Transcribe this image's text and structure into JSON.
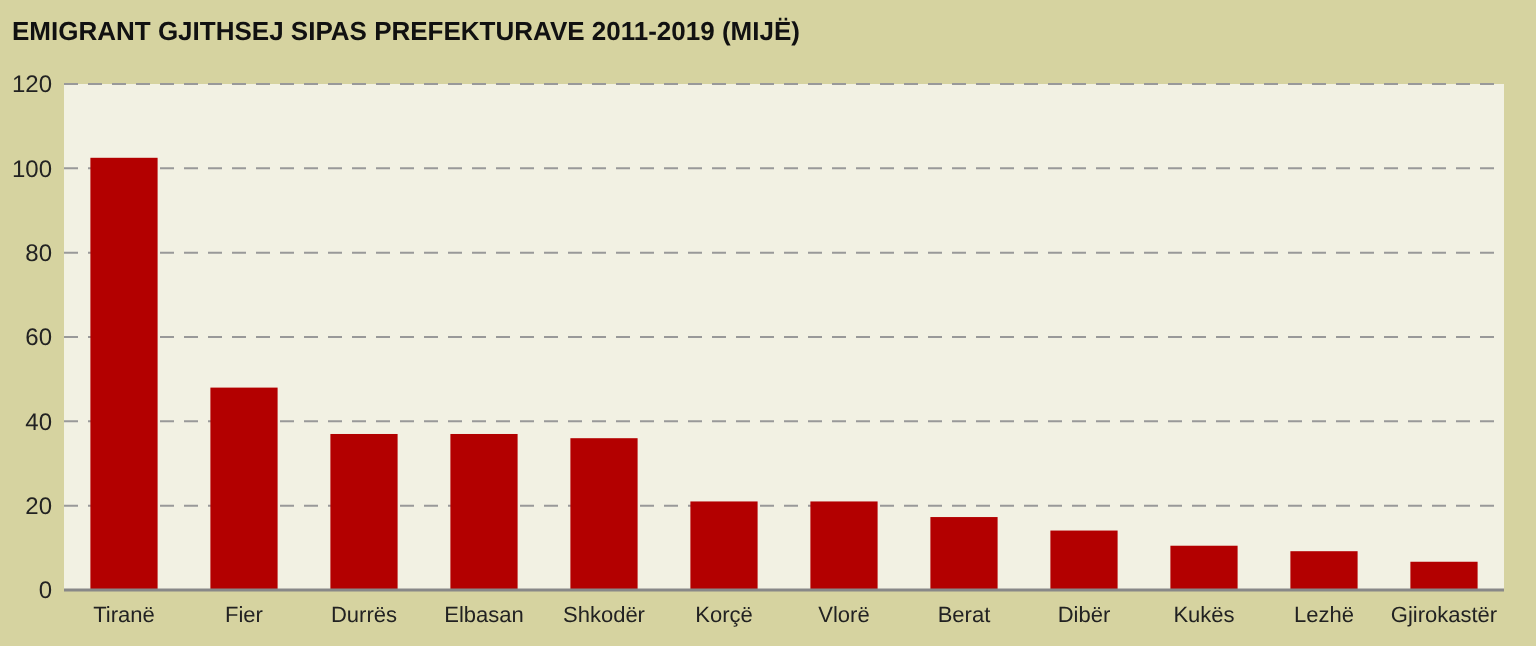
{
  "chart_data": {
    "type": "bar",
    "title": "EMIGRANT GJITHSEJ SIPAS PREFEKTURAVE 2011-2019 (MIJË)",
    "categories": [
      "Tiranë",
      "Fier",
      "Durrës",
      "Elbasan",
      "Shkodër",
      "Korçë",
      "Vlorë",
      "Berat",
      "Dibër",
      "Kukës",
      "Lezhë",
      "Gjirokastër"
    ],
    "values": [
      102.5,
      48,
      37,
      37,
      36,
      21,
      21,
      17.3,
      14.1,
      10.5,
      9.2,
      6.7
    ],
    "color": "#b30000",
    "ylim": [
      0,
      120
    ],
    "yticks": [
      0,
      20,
      40,
      60,
      80,
      100,
      120
    ],
    "grid": "y"
  }
}
